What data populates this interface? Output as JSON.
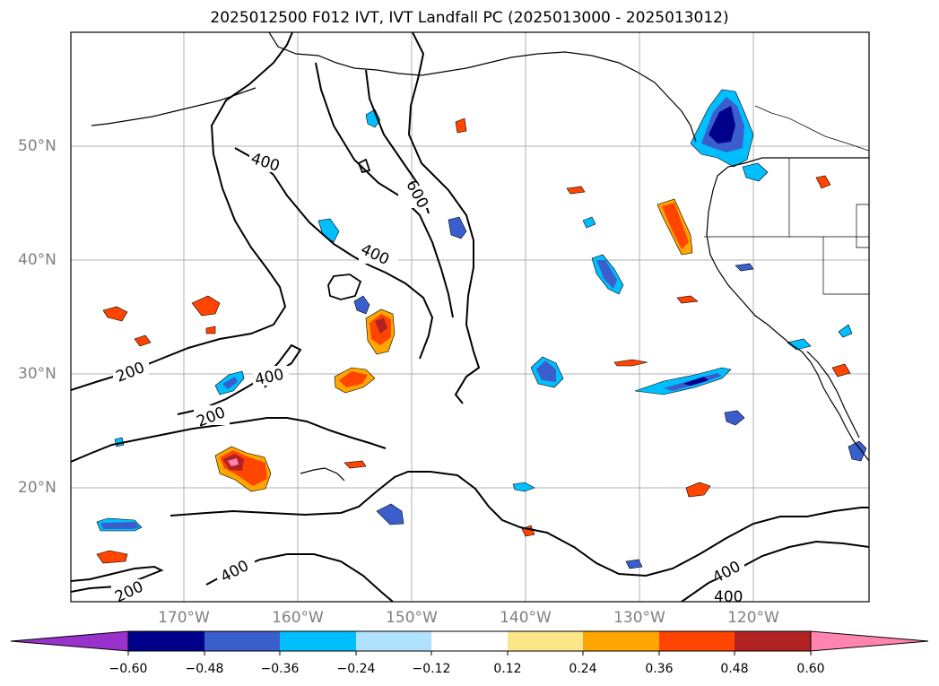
{
  "title": "2025012500 F012 IVT, IVT Landfall PC (2025013000 - 2025013012)",
  "lat_labels": [
    "50°N",
    "40°N",
    "30°N",
    "20°N"
  ],
  "lon_labels": [
    "170°W",
    "160°W",
    "150°W",
    "140°W",
    "130°W",
    "120°W"
  ],
  "contour_labels": [
    "400",
    "600",
    "400",
    "400",
    "200",
    "200",
    "200",
    "400",
    "400",
    "400"
  ],
  "colorbar": {
    "ticks": [
      "−0.60",
      "−0.48",
      "−0.36",
      "−0.24",
      "−0.12",
      "0.12",
      "0.24",
      "0.36",
      "0.48",
      "0.60"
    ],
    "colors": [
      "#9932cc",
      "#00008b",
      "#3a5fcd",
      "#00bfff",
      "#b0e2ff",
      "#ffffff",
      "#fde68a",
      "#ffa500",
      "#ff4500",
      "#b22222",
      "#ff85b0"
    ]
  }
}
